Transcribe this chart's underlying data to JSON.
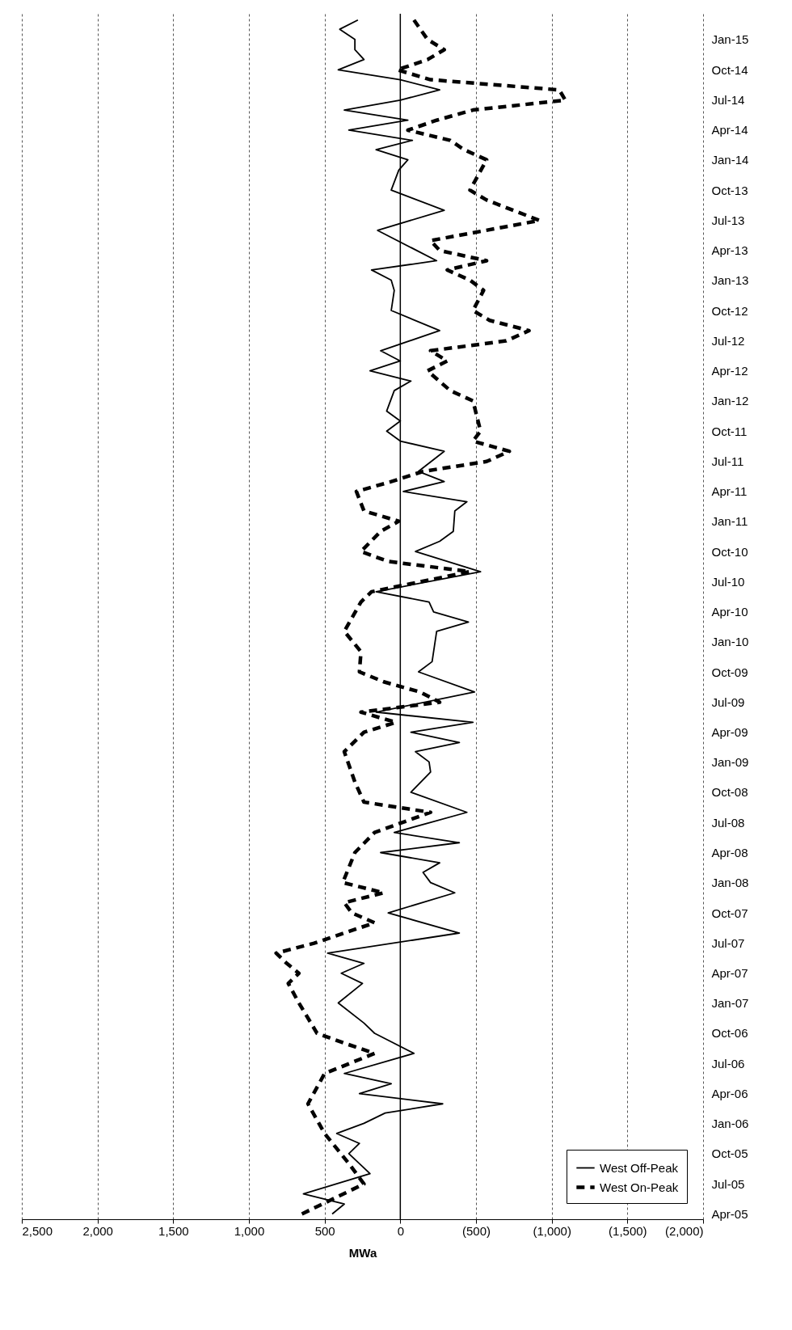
{
  "chart_data": {
    "type": "line",
    "orientation": "horizontal",
    "xlabel": "MWa",
    "ylim": [
      "2005-03-16",
      "2015-03-20"
    ],
    "xlim": [
      2500,
      -2000
    ],
    "xticks": [
      {
        "value": -2000,
        "label": "(2,000)"
      },
      {
        "value": -1500,
        "label": "(1,500)"
      },
      {
        "value": -1000,
        "label": "(1,000)"
      },
      {
        "value": -500,
        "label": "(500)"
      },
      0,
      500,
      {
        "value": 1000,
        "label": "1,000"
      },
      {
        "value": 1500,
        "label": "1,500"
      },
      {
        "value": 2000,
        "label": "2,000"
      },
      {
        "value": 2500,
        "label": "2,500"
      }
    ],
    "yticks": [
      {
        "value": "2005-04",
        "label": "Apr-05"
      },
      {
        "value": "2005-07",
        "label": "Jul-05"
      },
      {
        "value": "2005-10",
        "label": "Oct-05"
      },
      {
        "value": "2006-01",
        "label": "Jan-06"
      },
      {
        "value": "2006-04",
        "label": "Apr-06"
      },
      {
        "value": "2006-07",
        "label": "Jul-06"
      },
      {
        "value": "2006-10",
        "label": "Oct-06"
      },
      {
        "value": "2007-01",
        "label": "Jan-07"
      },
      {
        "value": "2007-04",
        "label": "Apr-07"
      },
      {
        "value": "2007-07",
        "label": "Jul-07"
      },
      {
        "value": "2007-10",
        "label": "Oct-07"
      },
      {
        "value": "2008-01",
        "label": "Jan-08"
      },
      {
        "value": "2008-04",
        "label": "Apr-08"
      },
      {
        "value": "2008-07",
        "label": "Jul-08"
      },
      {
        "value": "2008-10",
        "label": "Oct-08"
      },
      {
        "value": "2009-01",
        "label": "Jan-09"
      },
      {
        "value": "2009-04",
        "label": "Apr-09"
      },
      {
        "value": "2009-07",
        "label": "Jul-09"
      },
      {
        "value": "2009-10",
        "label": "Oct-09"
      },
      {
        "value": "2010-01",
        "label": "Jan-10"
      },
      {
        "value": "2010-04",
        "label": "Apr-10"
      },
      {
        "value": "2010-07",
        "label": "Jul-10"
      },
      {
        "value": "2010-10",
        "label": "Oct-10"
      },
      {
        "value": "2011-01",
        "label": "Jan-11"
      },
      {
        "value": "2011-04",
        "label": "Apr-11"
      },
      {
        "value": "2011-07",
        "label": "Jul-11"
      },
      {
        "value": "2011-10",
        "label": "Oct-11"
      },
      {
        "value": "2012-01",
        "label": "Jan-12"
      },
      {
        "value": "2012-04",
        "label": "Apr-12"
      },
      {
        "value": "2012-07",
        "label": "Jul-12"
      },
      {
        "value": "2012-10",
        "label": "Oct-12"
      },
      {
        "value": "2013-01",
        "label": "Jan-13"
      },
      {
        "value": "2013-04",
        "label": "Apr-13"
      },
      {
        "value": "2013-07",
        "label": "Jul-13"
      },
      {
        "value": "2013-10",
        "label": "Oct-13"
      },
      {
        "value": "2014-01",
        "label": "Jan-14"
      },
      {
        "value": "2014-04",
        "label": "Apr-14"
      },
      {
        "value": "2014-07",
        "label": "Jul-14"
      },
      {
        "value": "2014-10",
        "label": "Oct-14"
      },
      {
        "value": "2015-01",
        "label": "Jan-15"
      }
    ],
    "grid": "x",
    "legend": "bottom right",
    "ref_lines": [
      {
        "axis": "x",
        "value": 0,
        "color": "#000000"
      }
    ],
    "series": [
      {
        "name": "West Off-Peak",
        "color": "#000000",
        "line_style": "solid",
        "x": [
          "2005-04",
          "2005-05",
          "2005-06",
          "2005-08",
          "2005-10",
          "2005-11",
          "2005-12",
          "2006-01",
          "2006-02",
          "2006-03",
          "2006-04",
          "2006-05",
          "2006-06",
          "2006-08",
          "2006-10",
          "2006-11",
          "2007-01",
          "2007-03",
          "2007-04",
          "2007-05",
          "2007-06",
          "2007-08",
          "2007-10",
          "2007-12",
          "2008-01",
          "2008-02",
          "2008-03",
          "2008-04",
          "2008-05",
          "2008-06",
          "2008-08",
          "2008-10",
          "2008-12",
          "2009-01",
          "2009-02",
          "2009-03",
          "2009-04",
          "2009-05",
          "2009-06",
          "2009-08",
          "2009-10",
          "2009-11",
          "2010-02",
          "2010-03",
          "2010-04",
          "2010-05",
          "2010-06",
          "2010-08",
          "2010-10",
          "2010-11",
          "2010-12",
          "2011-02",
          "2011-03",
          "2011-04",
          "2011-05",
          "2011-06",
          "2011-08",
          "2011-09",
          "2011-10",
          "2011-11",
          "2011-12",
          "2012-02",
          "2012-03",
          "2012-04",
          "2012-05",
          "2012-06",
          "2012-08",
          "2012-10",
          "2012-12",
          "2013-01",
          "2013-02",
          "2013-03",
          "2013-06",
          "2013-08",
          "2013-10",
          "2013-12",
          "2014-01",
          "2014-02",
          "2014-03",
          "2014-04",
          "2014-05",
          "2014-06",
          "2014-07",
          "2014-08",
          "2014-09",
          "2014-10",
          "2014-11",
          "2014-12",
          "2015-01",
          "2015-02",
          "2015-03"
        ],
        "values": [
          450,
          370,
          640,
          200,
          340,
          270,
          420,
          240,
          100,
          -280,
          270,
          60,
          370,
          -90,
          170,
          240,
          410,
          250,
          390,
          240,
          480,
          -390,
          80,
          -360,
          -200,
          -150,
          -260,
          130,
          -390,
          40,
          -440,
          -70,
          -200,
          -190,
          -100,
          -390,
          -70,
          -480,
          160,
          -490,
          -120,
          -210,
          -240,
          -450,
          -220,
          -190,
          160,
          -530,
          -100,
          -260,
          -350,
          -360,
          -440,
          -20,
          -290,
          -120,
          -290,
          0,
          90,
          0,
          90,
          40,
          -70,
          200,
          0,
          130,
          -260,
          60,
          40,
          60,
          190,
          -240,
          150,
          -290,
          60,
          10,
          -50,
          160,
          -80,
          340,
          -50,
          370,
          0,
          -260,
          0,
          410,
          240,
          300,
          300,
          400,
          280
        ]
      },
      {
        "name": "West On-Peak",
        "color": "#000000",
        "line_style": "dashed",
        "x": [
          "2005-04",
          "2005-07",
          "2005-09",
          "2005-12",
          "2006-03",
          "2006-06",
          "2006-08",
          "2006-09",
          "2006-10",
          "2007-01",
          "2007-03",
          "2007-04",
          "2007-05",
          "2007-06",
          "2007-07",
          "2007-09",
          "2007-10",
          "2007-11",
          "2007-12",
          "2008-01",
          "2008-04",
          "2008-06",
          "2008-08",
          "2008-09",
          "2008-11",
          "2009-02",
          "2009-04",
          "2009-05",
          "2009-06",
          "2009-07",
          "2009-08",
          "2009-09",
          "2009-10",
          "2009-12",
          "2010-02",
          "2010-05",
          "2010-06",
          "2010-08",
          "2010-09",
          "2010-10",
          "2010-12",
          "2011-01",
          "2011-02",
          "2011-04",
          "2011-05",
          "2011-06",
          "2011-07",
          "2011-08",
          "2011-09",
          "2011-10",
          "2012-01",
          "2012-02",
          "2012-04",
          "2012-05",
          "2012-06",
          "2012-07",
          "2012-08",
          "2012-09",
          "2012-10",
          "2012-12",
          "2013-01",
          "2013-02",
          "2013-03",
          "2013-04",
          "2013-05",
          "2013-07",
          "2013-09",
          "2013-10",
          "2014-01",
          "2014-02",
          "2014-03",
          "2014-04",
          "2014-05",
          "2014-06",
          "2014-07",
          "2014-08",
          "2014-09",
          "2014-10",
          "2014-11",
          "2014-12",
          "2015-01",
          "2015-03"
        ],
        "values": [
          650,
          240,
          340,
          500,
          610,
          500,
          170,
          370,
          550,
          670,
          740,
          670,
          750,
          820,
          570,
          170,
          320,
          370,
          110,
          380,
          300,
          170,
          -200,
          240,
          300,
          370,
          240,
          30,
          260,
          -260,
          -130,
          110,
          270,
          260,
          370,
          260,
          190,
          -460,
          80,
          260,
          130,
          10,
          240,
          290,
          60,
          -150,
          -570,
          -720,
          -480,
          -530,
          -480,
          -330,
          -180,
          -310,
          -200,
          -700,
          -850,
          -590,
          -480,
          -550,
          -460,
          -310,
          -570,
          -260,
          -200,
          -920,
          -570,
          -460,
          -570,
          -420,
          -330,
          -50,
          -240,
          -480,
          -1090,
          -1050,
          -200,
          20,
          -180,
          -290,
          -180,
          -90
        ]
      }
    ]
  }
}
